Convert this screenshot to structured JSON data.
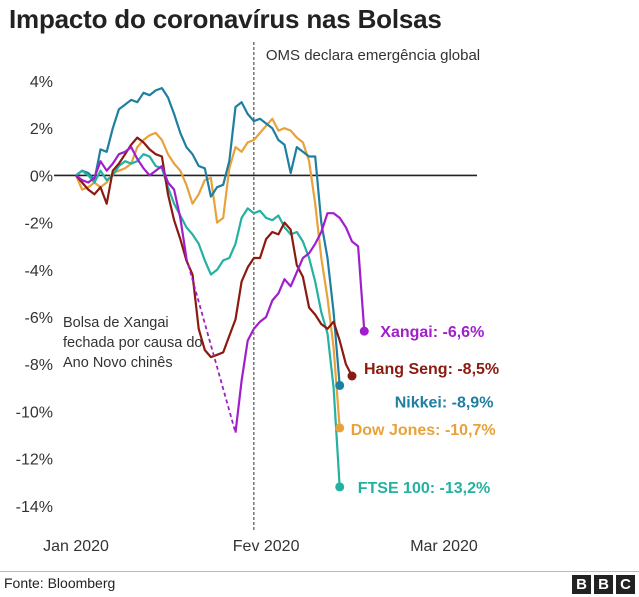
{
  "title": "Impacto do coronavírus nas Bolsas",
  "source": "Fonte: Bloomberg",
  "logo": [
    "B",
    "B",
    "C"
  ],
  "chart_data": {
    "type": "line",
    "ylim": [
      -14,
      4
    ],
    "yticks": [
      4,
      2,
      0,
      -2,
      -4,
      -6,
      -8,
      -10,
      -12,
      -14
    ],
    "ytick_labels": [
      "4%",
      "2%",
      "0%",
      "-2%",
      "-4%",
      "-6%",
      "-8%",
      "-10%",
      "-12%",
      "-14%"
    ],
    "xticks": [
      {
        "label": "Jan 2020",
        "day": 0
      },
      {
        "label": "Fev 2020",
        "day": 31
      },
      {
        "label": "Mar 2020",
        "day": 60
      }
    ],
    "xlim": [
      0,
      60
    ],
    "grid": false,
    "zero_line": true,
    "event": {
      "day": 29,
      "label": "OMS declara emergência global"
    },
    "annotation": {
      "lines": [
        "Bolsa de Xangai",
        "fechada por causa do",
        "Ano Novo chinês"
      ]
    },
    "colors": {
      "Xangai": "#a01ecb",
      "Hang Seng": "#8b1a10",
      "Nikkei": "#1f7fa0",
      "Dow Jones": "#e8a23c",
      "FTSE 100": "#24b1a1"
    },
    "series": [
      {
        "name": "Xangai",
        "end_label": "Xangai: -6,6%",
        "points": [
          [
            0,
            0
          ],
          [
            1,
            -0.2
          ],
          [
            2,
            -0.3
          ],
          [
            3,
            -0.1
          ],
          [
            4,
            0.6
          ],
          [
            5,
            0.2
          ],
          [
            6,
            0.5
          ],
          [
            7,
            0.9
          ],
          [
            8,
            1.0
          ],
          [
            9,
            1.2
          ],
          [
            10,
            0.7
          ],
          [
            11,
            0.3
          ],
          [
            12,
            0.0
          ],
          [
            13,
            0.2
          ],
          [
            14,
            0.4
          ],
          [
            15,
            -0.3
          ],
          [
            16,
            -0.6
          ],
          [
            17,
            -1.8
          ],
          [
            18,
            -3.5
          ]
        ],
        "gap": [
          [
            18,
            -3.5
          ],
          [
            26,
            -10.9
          ]
        ],
        "points2": [
          [
            26,
            -10.9
          ],
          [
            27,
            -8.7
          ],
          [
            28,
            -7.0
          ],
          [
            29,
            -6.5
          ],
          [
            30,
            -6.2
          ],
          [
            31,
            -6.0
          ],
          [
            32,
            -5.3
          ],
          [
            33,
            -5.0
          ],
          [
            34,
            -4.4
          ],
          [
            35,
            -4.7
          ],
          [
            36,
            -4.1
          ],
          [
            37,
            -3.5
          ],
          [
            38,
            -3.3
          ],
          [
            39,
            -2.9
          ],
          [
            40,
            -2.4
          ],
          [
            41,
            -1.6
          ],
          [
            42,
            -1.6
          ],
          [
            43,
            -1.8
          ],
          [
            44,
            -2.2
          ],
          [
            45,
            -2.8
          ],
          [
            46,
            -3.0
          ],
          [
            47,
            -6.6
          ]
        ]
      },
      {
        "name": "Hang Seng",
        "end_label": "Hang Seng: -8,5%",
        "points": [
          [
            0,
            0
          ],
          [
            1,
            -0.3
          ],
          [
            2,
            -0.6
          ],
          [
            3,
            -0.8
          ],
          [
            4,
            -0.5
          ],
          [
            5,
            -1.2
          ],
          [
            6,
            0.2
          ],
          [
            7,
            0.5
          ],
          [
            8,
            0.9
          ],
          [
            9,
            1.3
          ],
          [
            10,
            1.6
          ],
          [
            11,
            1.4
          ],
          [
            12,
            1.1
          ],
          [
            13,
            0.9
          ],
          [
            14,
            0.8
          ],
          [
            15,
            -0.8
          ],
          [
            16,
            -1.9
          ],
          [
            17,
            -2.7
          ],
          [
            18,
            -3.6
          ],
          [
            19,
            -4.2
          ],
          [
            20,
            -6.5
          ],
          [
            21,
            -7.4
          ],
          [
            22,
            -7.7
          ],
          [
            23,
            -7.6
          ],
          [
            24,
            -7.5
          ],
          [
            25,
            -6.8
          ],
          [
            26,
            -6.1
          ],
          [
            27,
            -4.5
          ],
          [
            28,
            -3.9
          ],
          [
            29,
            -3.5
          ],
          [
            30,
            -3.5
          ],
          [
            31,
            -2.7
          ],
          [
            32,
            -2.4
          ],
          [
            33,
            -2.5
          ],
          [
            34,
            -2.0
          ],
          [
            35,
            -2.3
          ],
          [
            36,
            -3.8
          ],
          [
            37,
            -4.3
          ],
          [
            38,
            -5.6
          ],
          [
            39,
            -5.9
          ],
          [
            40,
            -6.3
          ],
          [
            41,
            -6.5
          ],
          [
            42,
            -6.2
          ],
          [
            43,
            -7.0
          ],
          [
            44,
            -8.0
          ],
          [
            45,
            -8.5
          ]
        ]
      },
      {
        "name": "Nikkei",
        "end_label": "Nikkei: -8,9%",
        "points": [
          [
            0,
            0
          ],
          [
            1,
            0.2
          ],
          [
            2,
            0.1
          ],
          [
            3,
            -0.2
          ],
          [
            4,
            1.1
          ],
          [
            5,
            1.0
          ],
          [
            6,
            2.0
          ],
          [
            7,
            2.8
          ],
          [
            8,
            3.0
          ],
          [
            9,
            3.2
          ],
          [
            10,
            3.1
          ],
          [
            11,
            3.5
          ],
          [
            12,
            3.4
          ],
          [
            13,
            3.6
          ],
          [
            14,
            3.7
          ],
          [
            15,
            3.3
          ],
          [
            16,
            2.6
          ],
          [
            17,
            1.8
          ],
          [
            18,
            1.2
          ],
          [
            19,
            0.9
          ],
          [
            20,
            0.4
          ],
          [
            21,
            0.3
          ],
          [
            22,
            -0.9
          ],
          [
            23,
            -0.5
          ],
          [
            24,
            -0.4
          ],
          [
            25,
            0.6
          ],
          [
            26,
            2.9
          ],
          [
            27,
            3.1
          ],
          [
            28,
            2.6
          ],
          [
            29,
            2.3
          ],
          [
            30,
            2.4
          ],
          [
            31,
            2.2
          ],
          [
            32,
            2.0
          ],
          [
            33,
            1.5
          ],
          [
            34,
            1.3
          ],
          [
            35,
            0.1
          ],
          [
            36,
            1.2
          ],
          [
            37,
            1.0
          ],
          [
            38,
            0.8
          ],
          [
            39,
            0.8
          ],
          [
            40,
            -2.0
          ],
          [
            41,
            -3.5
          ],
          [
            42,
            -5.8
          ],
          [
            43,
            -8.9
          ]
        ]
      },
      {
        "name": "Dow Jones",
        "end_label": "Dow Jones: -10,7%",
        "points": [
          [
            0,
            0
          ],
          [
            1,
            -0.6
          ],
          [
            2,
            -0.5
          ],
          [
            3,
            -0.3
          ],
          [
            4,
            -0.5
          ],
          [
            5,
            -0.3
          ],
          [
            6,
            0.1
          ],
          [
            7,
            0.2
          ],
          [
            8,
            0.3
          ],
          [
            9,
            0.5
          ],
          [
            10,
            1.2
          ],
          [
            11,
            1.5
          ],
          [
            12,
            1.7
          ],
          [
            13,
            1.8
          ],
          [
            14,
            1.5
          ],
          [
            15,
            0.9
          ],
          [
            16,
            0.5
          ],
          [
            17,
            0.2
          ],
          [
            18,
            -0.4
          ],
          [
            19,
            -1.2
          ],
          [
            20,
            -0.8
          ],
          [
            21,
            -0.2
          ],
          [
            22,
            -0.1
          ],
          [
            23,
            -2.0
          ],
          [
            24,
            -1.8
          ],
          [
            25,
            0.3
          ],
          [
            26,
            1.2
          ],
          [
            27,
            1.0
          ],
          [
            28,
            1.4
          ],
          [
            29,
            1.5
          ],
          [
            30,
            1.8
          ],
          [
            31,
            2.1
          ],
          [
            32,
            2.4
          ],
          [
            33,
            1.9
          ],
          [
            34,
            2.0
          ],
          [
            35,
            1.9
          ],
          [
            36,
            1.6
          ],
          [
            37,
            1.4
          ],
          [
            38,
            0.6
          ],
          [
            39,
            -1.2
          ],
          [
            40,
            -3.5
          ],
          [
            41,
            -5.2
          ],
          [
            42,
            -7.3
          ],
          [
            43,
            -10.7
          ]
        ]
      },
      {
        "name": "FTSE 100",
        "end_label": "FTSE 100: -13,2%",
        "points": [
          [
            0,
            0
          ],
          [
            1,
            0.2
          ],
          [
            2,
            0.0
          ],
          [
            3,
            -0.3
          ],
          [
            4,
            0.2
          ],
          [
            5,
            -0.2
          ],
          [
            6,
            0.0
          ],
          [
            7,
            0.4
          ],
          [
            8,
            0.6
          ],
          [
            9,
            0.5
          ],
          [
            10,
            0.6
          ],
          [
            11,
            0.9
          ],
          [
            12,
            0.8
          ],
          [
            13,
            0.4
          ],
          [
            14,
            0.3
          ],
          [
            15,
            -0.5
          ],
          [
            16,
            -1.2
          ],
          [
            17,
            -1.7
          ],
          [
            18,
            -2.2
          ],
          [
            19,
            -2.5
          ],
          [
            20,
            -2.9
          ],
          [
            21,
            -3.6
          ],
          [
            22,
            -4.2
          ],
          [
            23,
            -4.0
          ],
          [
            24,
            -3.6
          ],
          [
            25,
            -3.5
          ],
          [
            26,
            -2.9
          ],
          [
            27,
            -1.8
          ],
          [
            28,
            -1.4
          ],
          [
            29,
            -1.6
          ],
          [
            30,
            -1.5
          ],
          [
            31,
            -1.8
          ],
          [
            32,
            -1.9
          ],
          [
            33,
            -1.7
          ],
          [
            34,
            -2.2
          ],
          [
            35,
            -2.5
          ],
          [
            36,
            -2.4
          ],
          [
            37,
            -2.8
          ],
          [
            38,
            -3.5
          ],
          [
            39,
            -4.5
          ],
          [
            40,
            -5.8
          ],
          [
            41,
            -6.7
          ],
          [
            42,
            -9.0
          ],
          [
            43,
            -13.2
          ]
        ]
      }
    ]
  }
}
